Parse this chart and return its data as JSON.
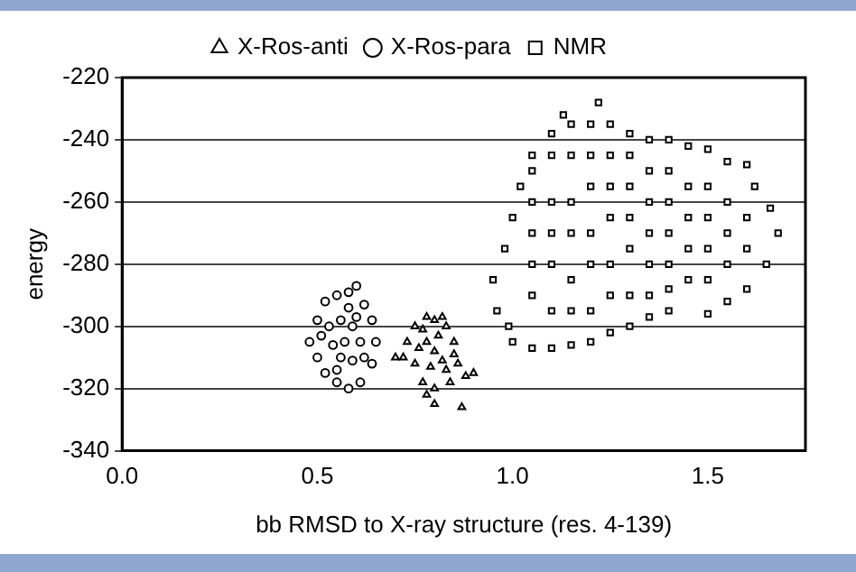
{
  "chart_data": {
    "type": "scatter",
    "xlabel": "bb RMSD to X-ray structure (res. 4-139)",
    "ylabel": "energy",
    "xlim": [
      0,
      1.75
    ],
    "xticks": [
      {
        "value": 0,
        "label": "0.0"
      },
      0.5,
      {
        "value": 1,
        "label": "1.0"
      },
      1.5
    ],
    "ylim": [
      -340,
      -220
    ],
    "yticks": [
      -340,
      -320,
      -300,
      -280,
      -260,
      -240,
      -220
    ],
    "grid": "y",
    "legend": "top",
    "series": [
      {
        "name": "X-Ros-anti",
        "color": "#000000",
        "marker": "triangle",
        "x": [
          0.75,
          0.78,
          0.8,
          0.83,
          0.85,
          0.86,
          0.88,
          0.9,
          0.84,
          0.8,
          0.77,
          0.75,
          0.73,
          0.72,
          0.78,
          0.8,
          0.82,
          0.79,
          0.76,
          0.81,
          0.83,
          0.78,
          0.8,
          0.87,
          0.7,
          0.85,
          0.77,
          0.82
        ],
        "values": [
          -300,
          -297,
          -298,
          -300,
          -305,
          -312,
          -316,
          -315,
          -318,
          -320,
          -318,
          -312,
          -305,
          -310,
          -305,
          -308,
          -311,
          -313,
          -307,
          -303,
          -314,
          -322,
          -325,
          -326,
          -310,
          -309,
          -301,
          -297
        ]
      },
      {
        "name": "X-Ros-para",
        "color": "#000000",
        "marker": "circle",
        "x": [
          0.5,
          0.52,
          0.55,
          0.58,
          0.6,
          0.62,
          0.64,
          0.65,
          0.64,
          0.61,
          0.58,
          0.55,
          0.52,
          0.5,
          0.48,
          0.53,
          0.56,
          0.59,
          0.61,
          0.57,
          0.54,
          0.56,
          0.59,
          0.6,
          0.55,
          0.62,
          0.51,
          0.58
        ],
        "values": [
          -298,
          -292,
          -290,
          -289,
          -287,
          -293,
          -298,
          -305,
          -312,
          -318,
          -320,
          -318,
          -315,
          -310,
          -305,
          -300,
          -298,
          -300,
          -305,
          -305,
          -306,
          -310,
          -311,
          -297,
          -314,
          -310,
          -303,
          -294
        ]
      },
      {
        "name": "NMR",
        "color": "#000000",
        "marker": "square",
        "x": [
          1.0,
          1.05,
          1.1,
          1.15,
          1.2,
          1.25,
          1.3,
          1.35,
          1.4,
          1.5,
          1.55,
          1.6,
          1.65,
          1.68,
          1.66,
          1.62,
          1.6,
          1.55,
          1.5,
          1.45,
          1.4,
          1.35,
          1.3,
          1.25,
          1.2,
          1.15,
          1.13,
          1.22,
          1.1,
          1.05,
          1.02,
          1.0,
          0.98,
          0.95,
          0.96,
          0.99,
          1.05,
          1.05,
          1.05,
          1.05,
          1.05,
          1.1,
          1.1,
          1.1,
          1.1,
          1.1,
          1.15,
          1.15,
          1.15,
          1.15,
          1.15,
          1.2,
          1.2,
          1.2,
          1.2,
          1.2,
          1.25,
          1.25,
          1.25,
          1.25,
          1.25,
          1.3,
          1.3,
          1.3,
          1.3,
          1.3,
          1.35,
          1.35,
          1.35,
          1.35,
          1.35,
          1.4,
          1.4,
          1.4,
          1.4,
          1.4,
          1.45,
          1.45,
          1.45,
          1.45,
          1.5,
          1.5,
          1.5,
          1.5,
          1.55,
          1.55,
          1.55,
          1.6,
          1.6
        ],
        "values": [
          -305,
          -307,
          -307,
          -306,
          -305,
          -302,
          -300,
          -297,
          -295,
          -296,
          -292,
          -288,
          -280,
          -270,
          -262,
          -255,
          -248,
          -247,
          -243,
          -242,
          -240,
          -240,
          -238,
          -235,
          -235,
          -235,
          -232,
          -228,
          -238,
          -245,
          -255,
          -265,
          -275,
          -285,
          -295,
          -300,
          -250,
          -260,
          -270,
          -280,
          -290,
          -245,
          -260,
          -270,
          -280,
          -295,
          -245,
          -260,
          -270,
          -285,
          -295,
          -245,
          -255,
          -270,
          -280,
          -295,
          -245,
          -255,
          -265,
          -280,
          -290,
          -245,
          -255,
          -265,
          -275,
          -290,
          -250,
          -260,
          -270,
          -280,
          -290,
          -250,
          -260,
          -270,
          -280,
          -288,
          -255,
          -265,
          -275,
          -285,
          -255,
          -265,
          -275,
          -285,
          -260,
          -270,
          -280,
          -265,
          -275
        ]
      }
    ]
  }
}
